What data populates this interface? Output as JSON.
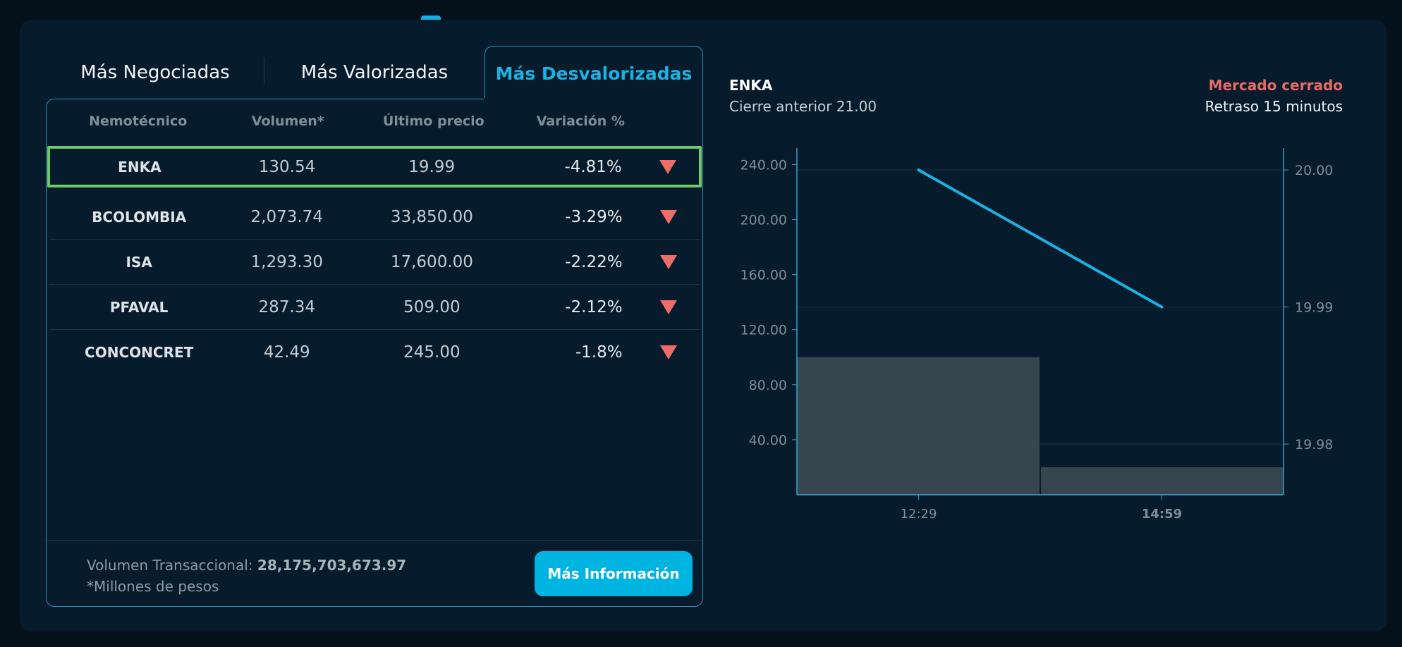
{
  "tabs": [
    {
      "label": "Más Negociadas",
      "active": false
    },
    {
      "label": "Más Valorizadas",
      "active": false
    },
    {
      "label": "Más Desvalorizadas",
      "active": true
    }
  ],
  "table": {
    "headers": [
      "Nemotécnico",
      "Volumen*",
      "Último precio",
      "Variación %"
    ],
    "rows": [
      {
        "symbol": "ENKA",
        "volume": "130.54",
        "last_price": "19.99",
        "variation": "-4.81%",
        "direction": "down",
        "selected": true
      },
      {
        "symbol": "BCOLOMBIA",
        "volume": "2,073.74",
        "last_price": "33,850.00",
        "variation": "-3.29%",
        "direction": "down",
        "selected": false
      },
      {
        "symbol": "ISA",
        "volume": "1,293.30",
        "last_price": "17,600.00",
        "variation": "-2.22%",
        "direction": "down",
        "selected": false
      },
      {
        "symbol": "PFAVAL",
        "volume": "287.34",
        "last_price": "509.00",
        "variation": "-2.12%",
        "direction": "down",
        "selected": false
      },
      {
        "symbol": "CONCONCRET",
        "volume": "42.49",
        "last_price": "245.00",
        "variation": "-1.8%",
        "direction": "down",
        "selected": false
      }
    ]
  },
  "footer": {
    "volume_label": "Volumen Transaccional:",
    "volume_value": "28,175,703,673.97",
    "note": "*Millones de pesos",
    "button_label": "Más Información"
  },
  "chart_header": {
    "symbol": "ENKA",
    "previous_close": "Cierre anterior 21.00",
    "market_status": "Mercado cerrado",
    "delay": "Retraso 15 minutos"
  },
  "colors": {
    "accent": "#00b4e2",
    "active_tab": "#1bb1e2",
    "down": "#ee6d68",
    "selected_row": "#6fca6c",
    "market_closed": "#e96a66",
    "volume_bar": "#36464f",
    "price_line": "#1bb1e2"
  },
  "chart_data": {
    "type": "bar+line",
    "title": "ENKA",
    "x": [
      "12:29",
      "14:59"
    ],
    "series": [
      {
        "name": "Volumen",
        "type": "bar",
        "axis": "left",
        "values": [
          100,
          20
        ]
      },
      {
        "name": "Precio",
        "type": "line",
        "axis": "right",
        "values": [
          20.0,
          19.99
        ]
      }
    ],
    "left_axis": {
      "ticks": [
        "240.00",
        "200.00",
        "160.00",
        "120.00",
        "80.00",
        "40.00"
      ],
      "ylim": [
        0,
        252
      ]
    },
    "right_axis": {
      "ticks": [
        "20.00",
        "19.99",
        "19.98"
      ],
      "ylim": [
        19.9763,
        20.0016
      ]
    },
    "grid": true,
    "legend": "none"
  }
}
